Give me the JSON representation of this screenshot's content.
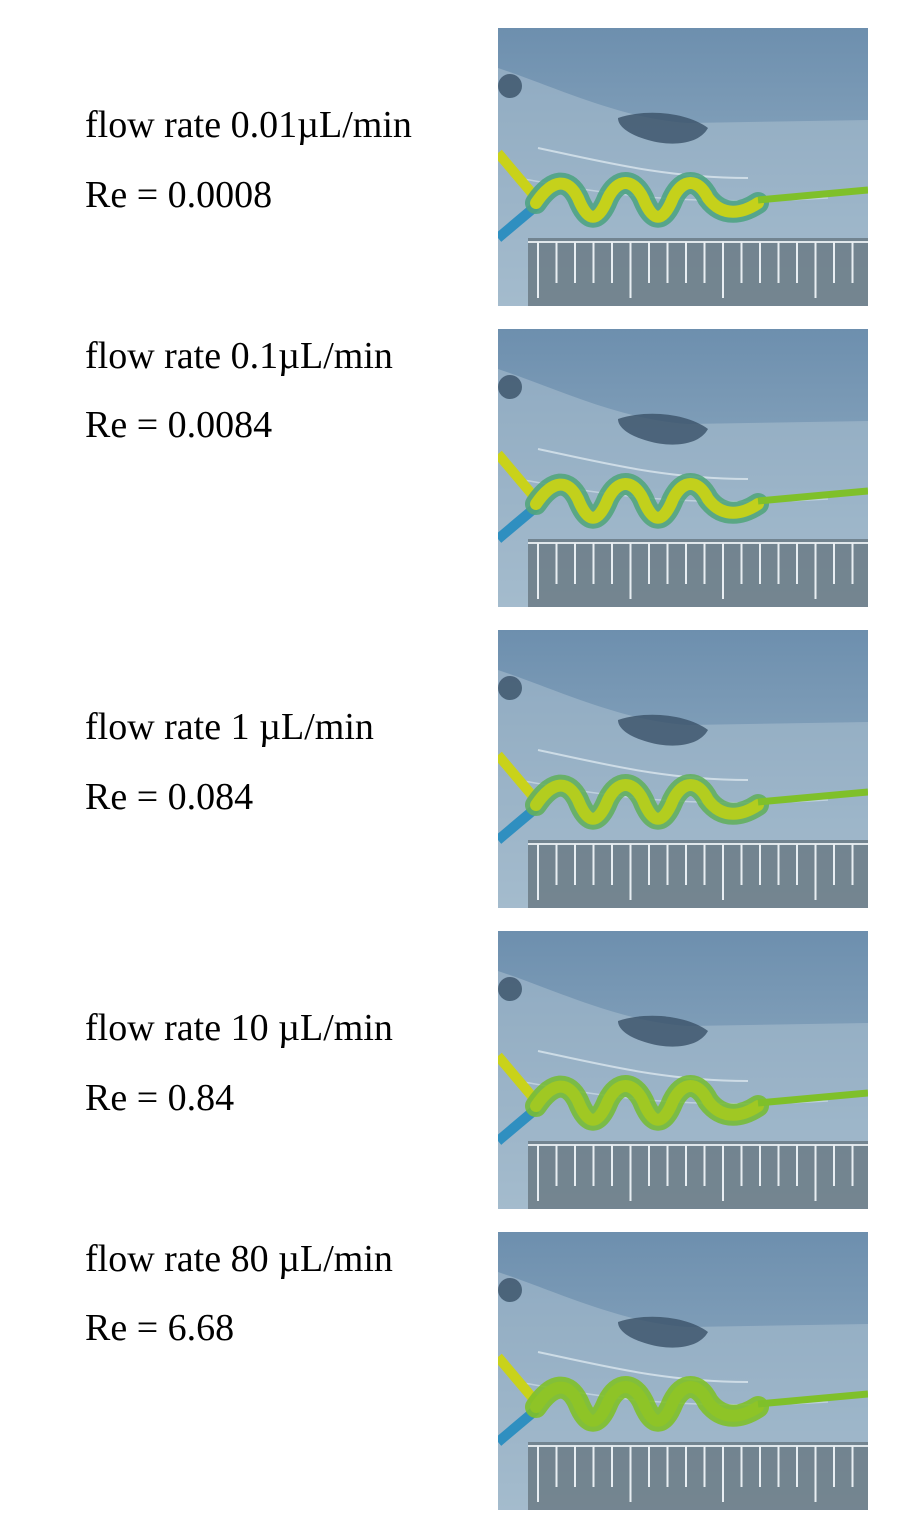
{
  "panels": [
    {
      "flow_label": "flow rate 0.01µL/min",
      "re_label": "Re = 0.0008",
      "mixing_level": 0.05
    },
    {
      "flow_label": "flow rate 0.1µL/min",
      "re_label": "Re = 0.0084",
      "mixing_level": 0.1
    },
    {
      "flow_label": "flow rate 1 µL/min",
      "re_label": "Re = 0.084",
      "mixing_level": 0.3
    },
    {
      "flow_label": "flow rate 10 µL/min",
      "re_label": "Re = 0.84",
      "mixing_level": 0.55
    },
    {
      "flow_label": "flow rate 80 µL/min",
      "re_label": "Re = 6.68",
      "mixing_level": 0.8
    }
  ],
  "colors": {
    "background_top": "#6d8fae",
    "background_bottom": "#9db6c9",
    "stream_yellow": "#c9d21a",
    "stream_blue": "#2f8fc0",
    "mixed_green": "#7fc02a",
    "ruler": "#5b6870",
    "dark_blob": "#3a5168"
  }
}
